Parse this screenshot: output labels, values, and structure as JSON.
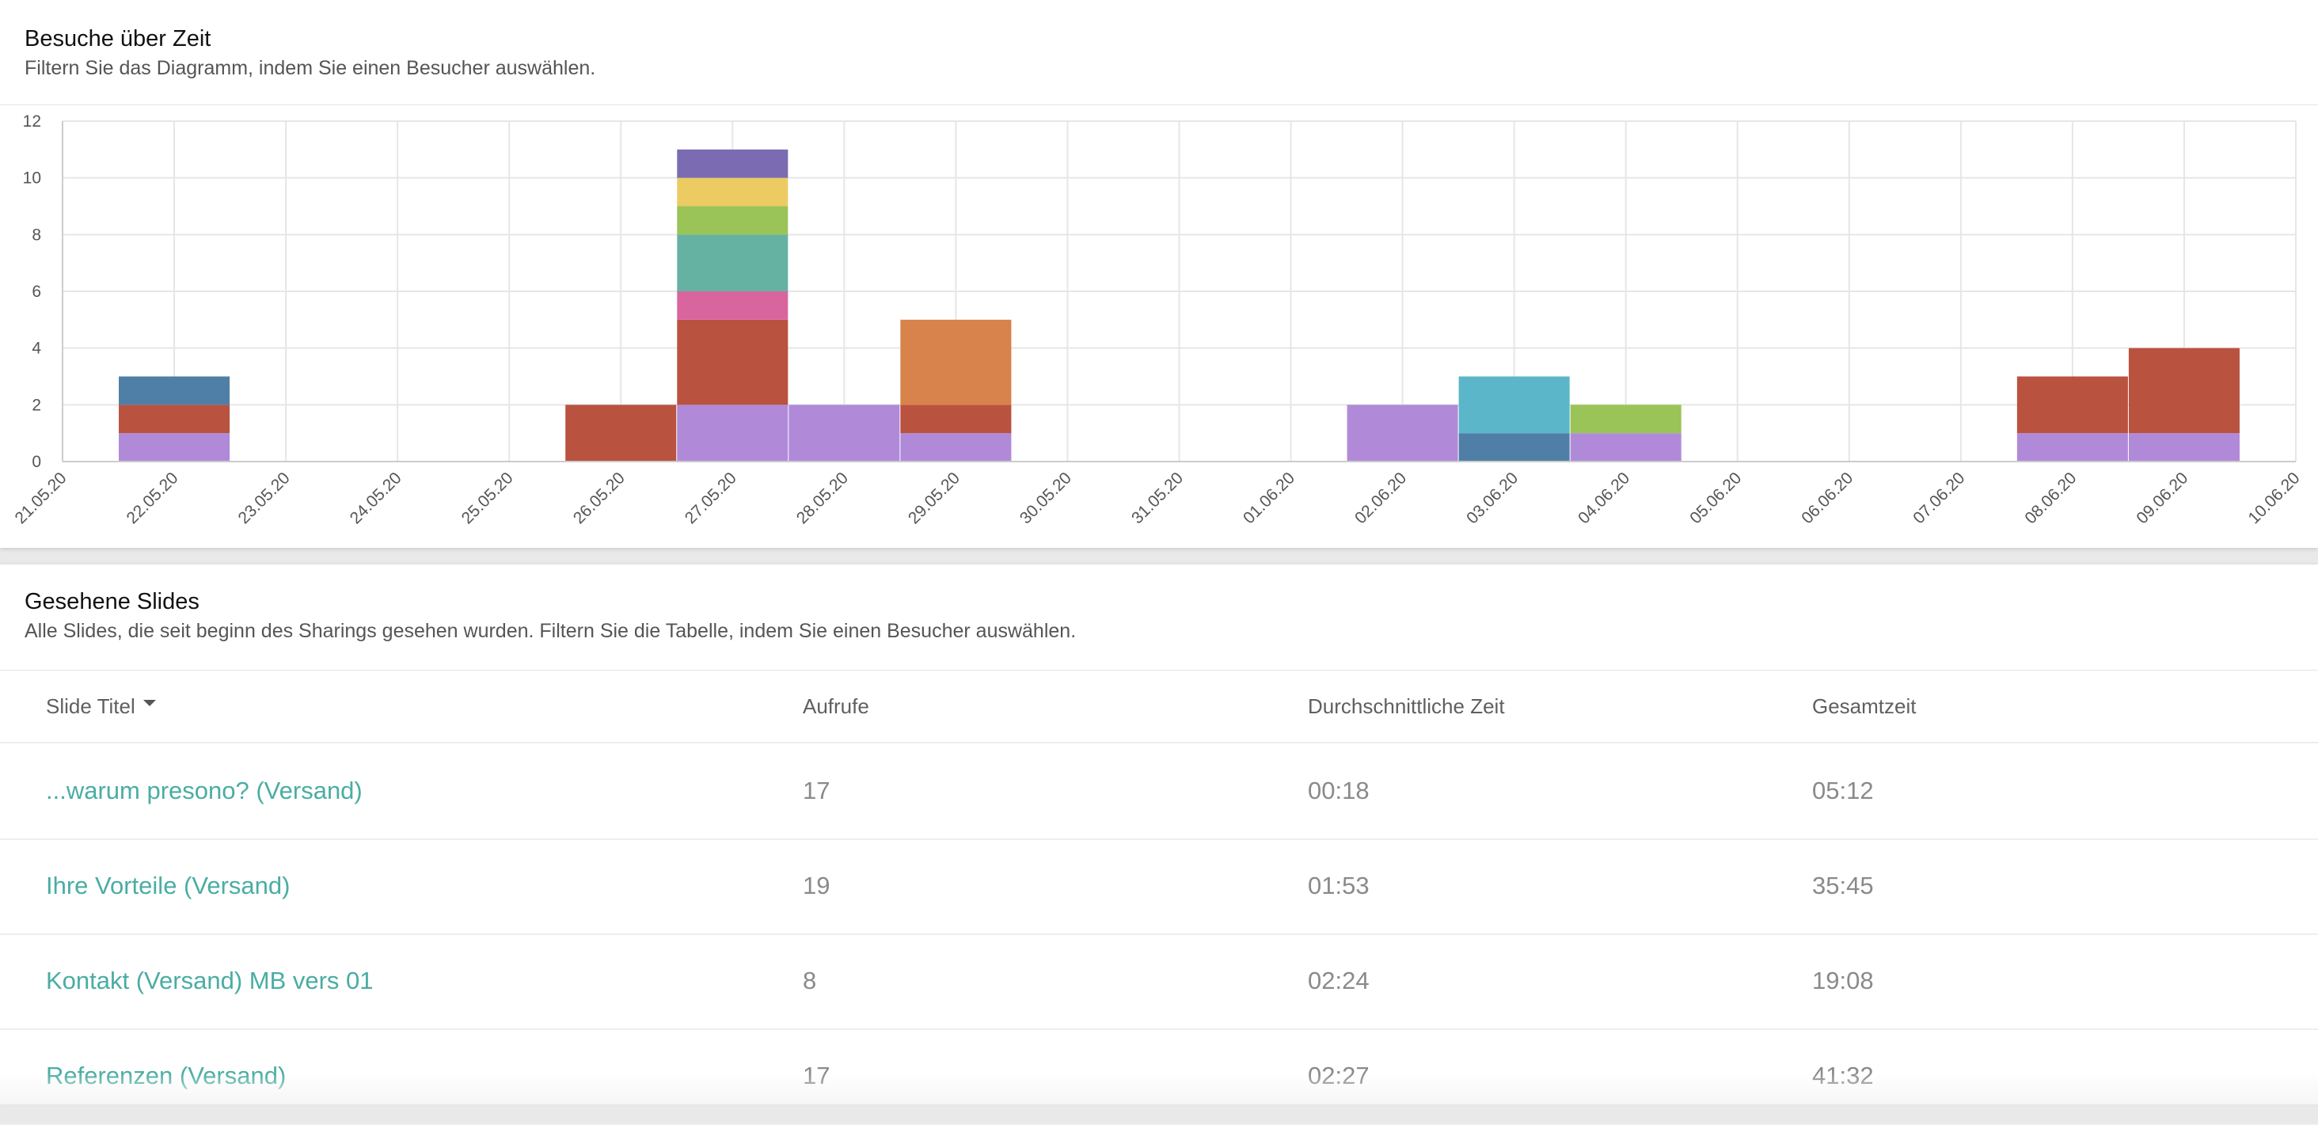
{
  "visits_card": {
    "title": "Besuche über Zeit",
    "subtitle": "Filtern Sie das Diagramm, indem Sie einen Besucher auswählen."
  },
  "chart_data": {
    "type": "bar",
    "stacked": true,
    "categories": [
      "21.05.20",
      "22.05.20",
      "23.05.20",
      "24.05.20",
      "25.05.20",
      "26.05.20",
      "27.05.20",
      "28.05.20",
      "29.05.20",
      "30.05.20",
      "31.05.20",
      "01.06.20",
      "02.06.20",
      "03.06.20",
      "04.06.20",
      "05.06.20",
      "06.06.20",
      "07.06.20",
      "08.06.20",
      "09.06.20",
      "10.06.20"
    ],
    "ylim": [
      0,
      12
    ],
    "yticks": [
      0,
      2,
      4,
      6,
      8,
      10,
      12
    ],
    "grid": true,
    "series": [
      {
        "color": "#b08ad9",
        "values": [
          0,
          1,
          0,
          0,
          0,
          0,
          2,
          2,
          1,
          0,
          0,
          0,
          2,
          0,
          1,
          0,
          0,
          0,
          1,
          1,
          0
        ]
      },
      {
        "color": "#b9523f",
        "values": [
          0,
          1,
          0,
          0,
          0,
          2,
          3,
          0,
          1,
          0,
          0,
          0,
          0,
          0,
          0,
          0,
          0,
          0,
          2,
          3,
          0
        ]
      },
      {
        "color": "#d8824c",
        "values": [
          0,
          0,
          0,
          0,
          0,
          0,
          0,
          0,
          3,
          0,
          0,
          0,
          0,
          0,
          0,
          0,
          0,
          0,
          0,
          0,
          0
        ]
      },
      {
        "color": "#4f7fa6",
        "values": [
          0,
          1,
          0,
          0,
          0,
          0,
          0,
          0,
          0,
          0,
          0,
          0,
          0,
          1,
          0,
          0,
          0,
          0,
          0,
          0,
          0
        ]
      },
      {
        "color": "#5bb6c9",
        "values": [
          0,
          0,
          0,
          0,
          0,
          0,
          0,
          0,
          0,
          0,
          0,
          0,
          0,
          2,
          0,
          0,
          0,
          0,
          0,
          0,
          0
        ]
      },
      {
        "color": "#9ac358",
        "values": [
          0,
          0,
          0,
          0,
          0,
          0,
          0,
          0,
          0,
          0,
          0,
          0,
          0,
          0,
          1,
          0,
          0,
          0,
          0,
          0,
          0
        ]
      },
      {
        "color": "#d9659f",
        "values": [
          0,
          0,
          0,
          0,
          0,
          0,
          1,
          0,
          0,
          0,
          0,
          0,
          0,
          0,
          0,
          0,
          0,
          0,
          0,
          0,
          0
        ]
      },
      {
        "color": "#66b2a2",
        "values": [
          0,
          0,
          0,
          0,
          0,
          0,
          2,
          0,
          0,
          0,
          0,
          0,
          0,
          0,
          0,
          0,
          0,
          0,
          0,
          0,
          0
        ]
      },
      {
        "color": "#9ac358",
        "values": [
          0,
          0,
          0,
          0,
          0,
          0,
          1,
          0,
          0,
          0,
          0,
          0,
          0,
          0,
          0,
          0,
          0,
          0,
          0,
          0,
          0
        ]
      },
      {
        "color": "#ebcb62",
        "values": [
          0,
          0,
          0,
          0,
          0,
          0,
          1,
          0,
          0,
          0,
          0,
          0,
          0,
          0,
          0,
          0,
          0,
          0,
          0,
          0,
          0
        ]
      },
      {
        "color": "#7a6bb3",
        "values": [
          0,
          0,
          0,
          0,
          0,
          0,
          1,
          0,
          0,
          0,
          0,
          0,
          0,
          0,
          0,
          0,
          0,
          0,
          0,
          0,
          0
        ]
      }
    ]
  },
  "slides_card": {
    "title": "Gesehene Slides",
    "subtitle": "Alle Slides, die seit beginn des Sharings gesehen wurden. Filtern Sie die Tabelle, indem Sie einen Besucher auswählen.",
    "columns": [
      "Slide Titel",
      "Aufrufe",
      "Durchschnittliche Zeit",
      "Gesamtzeit"
    ],
    "rows": [
      {
        "title": "...warum presono? (Versand)",
        "views": "17",
        "avg": "00:18",
        "total": "05:12"
      },
      {
        "title": "Ihre Vorteile (Versand)",
        "views": "19",
        "avg": "01:53",
        "total": "35:45"
      },
      {
        "title": "Kontakt (Versand) MB vers 01",
        "views": "8",
        "avg": "02:24",
        "total": "19:08"
      },
      {
        "title": "Referenzen (Versand)",
        "views": "17",
        "avg": "02:27",
        "total": "41:32"
      }
    ]
  }
}
